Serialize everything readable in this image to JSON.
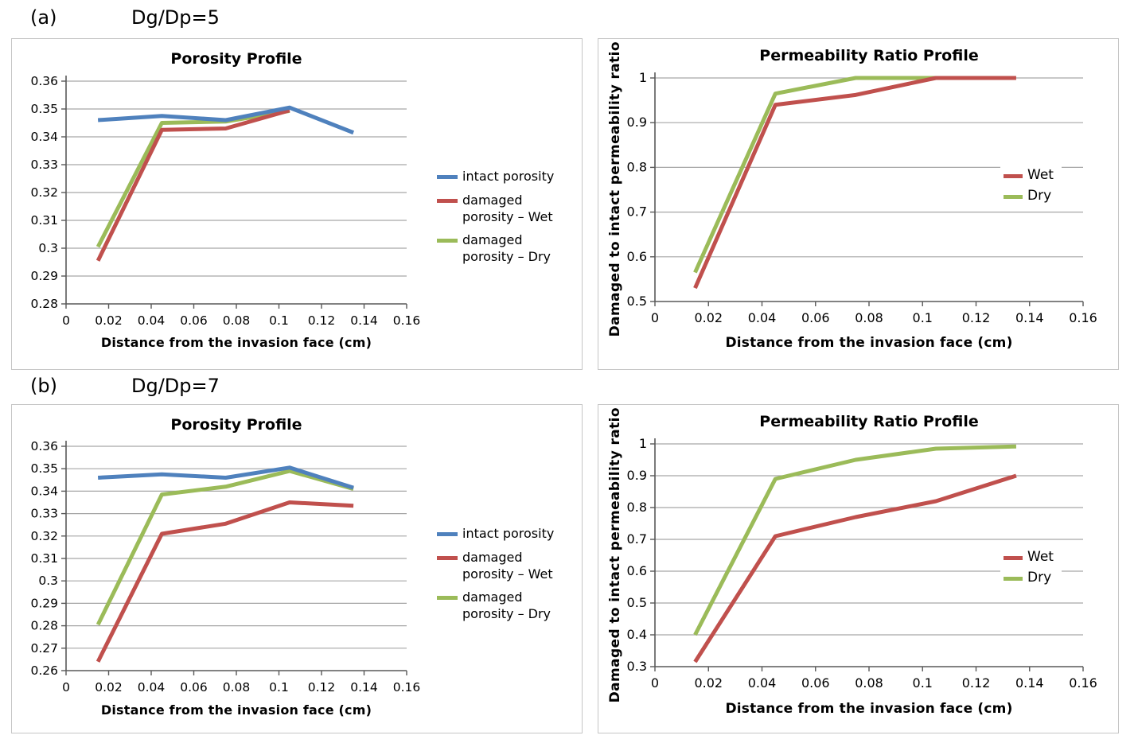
{
  "figure": {
    "sections": [
      {
        "id": "a",
        "index_label": "(a)",
        "ratio_label": "Dg/Dp=5"
      },
      {
        "id": "b",
        "index_label": "(b)",
        "ratio_label": "Dg/Dp=7"
      }
    ]
  },
  "colors": {
    "intact_blue": "#4F81BD",
    "wet_red": "#C0504D",
    "dry_green": "#9BBB59",
    "gridline": "#A6A6A6",
    "axis": "#595959",
    "panel_border": "#C6C6C6"
  },
  "chart_data": [
    {
      "id": "porosity-a",
      "type": "line",
      "section": "a",
      "title": "Porosity Profile",
      "xlabel": "Distance from the invasion face (cm)",
      "ylabel": "",
      "xlim": [
        0,
        0.16
      ],
      "ylim": [
        0.28,
        0.36
      ],
      "grid": true,
      "legend_position": "right-outside",
      "xtick_values": [
        0,
        0.02,
        0.04,
        0.06,
        0.08,
        0.1,
        0.12,
        0.14,
        0.16
      ],
      "xtick_labels": [
        "0",
        "0.02",
        "0.04",
        "0.06",
        "0.08",
        "0.1",
        "0.12",
        "0.14",
        "0.16"
      ],
      "ytick_values": [
        0.28,
        0.29,
        0.3,
        0.31,
        0.32,
        0.33,
        0.34,
        0.35,
        0.36
      ],
      "ytick_labels": [
        "0.28",
        "0.29",
        "0.3",
        "0.31",
        "0.32",
        "0.33",
        "0.34",
        "0.35",
        "0.36"
      ],
      "series": [
        {
          "name": "intact porosity",
          "color": "#4F81BD",
          "x": [
            0.015,
            0.045,
            0.075,
            0.105,
            0.135
          ],
          "y": [
            0.346,
            0.3475,
            0.346,
            0.3505,
            0.3415
          ]
        },
        {
          "name": "damaged porosity – Wet",
          "color": "#C0504D",
          "x": [
            0.015,
            0.045,
            0.075,
            0.105
          ],
          "y": [
            0.2955,
            0.3425,
            0.343,
            0.3495
          ]
        },
        {
          "name": "damaged porosity – Dry",
          "color": "#9BBB59",
          "x": [
            0.015,
            0.045,
            0.075,
            0.105
          ],
          "y": [
            0.3005,
            0.345,
            0.3455,
            0.3493
          ]
        }
      ]
    },
    {
      "id": "permeability-a",
      "type": "line",
      "section": "a",
      "title": "Permeability Ratio Profile",
      "xlabel": "Distance from the invasion face (cm)",
      "ylabel": "Damaged to intact permeability ratio",
      "xlim": [
        0,
        0.16
      ],
      "ylim": [
        0.5,
        1
      ],
      "grid": true,
      "legend_position": "inside-right",
      "xtick_values": [
        0,
        0.02,
        0.04,
        0.06,
        0.08,
        0.1,
        0.12,
        0.14,
        0.16
      ],
      "xtick_labels": [
        "0",
        "0.02",
        "0.04",
        "0.06",
        "0.08",
        "0.1",
        "0.12",
        "0.14",
        "0.16"
      ],
      "ytick_values": [
        0.5,
        0.6,
        0.7,
        0.8,
        0.9,
        1
      ],
      "ytick_labels": [
        "0.5",
        "0.6",
        "0.7",
        "0.8",
        "0.9",
        "1"
      ],
      "series": [
        {
          "name": "Wet",
          "color": "#C0504D",
          "x": [
            0.015,
            0.045,
            0.075,
            0.105,
            0.135
          ],
          "y": [
            0.53,
            0.94,
            0.962,
            1.0,
            1.0
          ]
        },
        {
          "name": "Dry",
          "color": "#9BBB59",
          "x": [
            0.015,
            0.045,
            0.075,
            0.105
          ],
          "y": [
            0.565,
            0.965,
            1.0,
            1.0
          ]
        }
      ]
    },
    {
      "id": "porosity-b",
      "type": "line",
      "section": "b",
      "title": "Porosity Profile",
      "xlabel": "Distance from the invasion face (cm)",
      "ylabel": "",
      "xlim": [
        0,
        0.16
      ],
      "ylim": [
        0.26,
        0.36
      ],
      "grid": true,
      "legend_position": "right-outside",
      "xtick_values": [
        0,
        0.02,
        0.04,
        0.06,
        0.08,
        0.1,
        0.12,
        0.14,
        0.16
      ],
      "xtick_labels": [
        "0",
        "0.02",
        "0.04",
        "0.06",
        "0.08",
        "0.1",
        "0.12",
        "0.14",
        "0.16"
      ],
      "ytick_values": [
        0.26,
        0.27,
        0.28,
        0.29,
        0.3,
        0.31,
        0.32,
        0.33,
        0.34,
        0.35,
        0.36
      ],
      "ytick_labels": [
        "0.26",
        "0.27",
        "0.28",
        "0.29",
        "0.3",
        "0.31",
        "0.32",
        "0.33",
        "0.34",
        "0.35",
        "0.36"
      ],
      "series": [
        {
          "name": "intact porosity",
          "color": "#4F81BD",
          "x": [
            0.015,
            0.045,
            0.075,
            0.105,
            0.135
          ],
          "y": [
            0.346,
            0.3475,
            0.346,
            0.3505,
            0.3415
          ]
        },
        {
          "name": "damaged porosity – Wet",
          "color": "#C0504D",
          "x": [
            0.015,
            0.045,
            0.075,
            0.105,
            0.135
          ],
          "y": [
            0.264,
            0.321,
            0.3255,
            0.335,
            0.3335
          ]
        },
        {
          "name": "damaged porosity – Dry",
          "color": "#9BBB59",
          "x": [
            0.015,
            0.045,
            0.075,
            0.105,
            0.135
          ],
          "y": [
            0.2805,
            0.3385,
            0.342,
            0.349,
            0.341
          ]
        }
      ]
    },
    {
      "id": "permeability-b",
      "type": "line",
      "section": "b",
      "title": "Permeability Ratio Profile",
      "xlabel": "Distance from the invasion face (cm)",
      "ylabel": "Damaged to intact permeability ratio",
      "xlim": [
        0,
        0.16
      ],
      "ylim": [
        0.3,
        1
      ],
      "grid": true,
      "legend_position": "inside-right",
      "xtick_values": [
        0,
        0.02,
        0.04,
        0.06,
        0.08,
        0.1,
        0.12,
        0.14,
        0.16
      ],
      "xtick_labels": [
        "0",
        "0.02",
        "0.04",
        "0.06",
        "0.08",
        "0.1",
        "0.12",
        "0.14",
        "0.16"
      ],
      "ytick_values": [
        0.3,
        0.4,
        0.5,
        0.6,
        0.7,
        0.8,
        0.9,
        1
      ],
      "ytick_labels": [
        "0.3",
        "0.4",
        "0.5",
        "0.6",
        "0.7",
        "0.8",
        "0.9",
        "1"
      ],
      "series": [
        {
          "name": "Wet",
          "color": "#C0504D",
          "x": [
            0.015,
            0.045,
            0.075,
            0.105,
            0.135
          ],
          "y": [
            0.315,
            0.71,
            0.77,
            0.82,
            0.9
          ]
        },
        {
          "name": "Dry",
          "color": "#9BBB59",
          "x": [
            0.015,
            0.045,
            0.075,
            0.105,
            0.135
          ],
          "y": [
            0.4,
            0.89,
            0.95,
            0.985,
            0.992
          ]
        }
      ]
    }
  ]
}
